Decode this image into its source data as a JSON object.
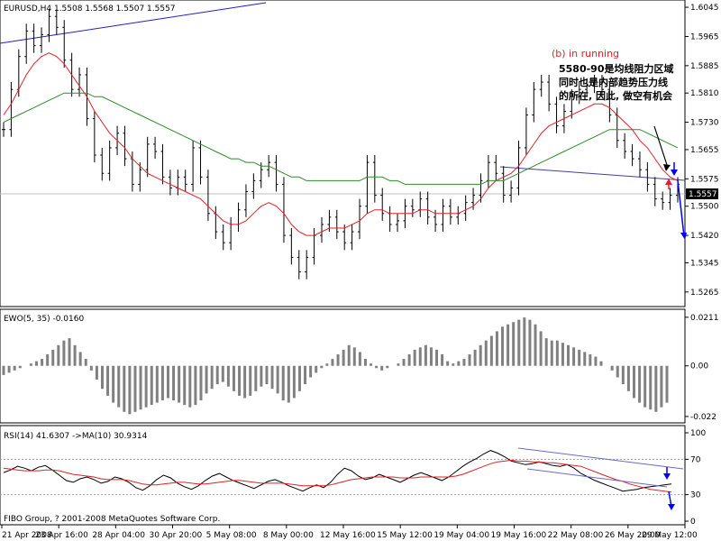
{
  "chart_data": [
    {
      "type": "candlestick",
      "panel": "price",
      "header_text": "EURUSD,H4  1.5508 1.5568 1.5507 1.5557",
      "ylim": [
        1.523,
        1.606
      ],
      "y_ticks": [
        "1.6045",
        "1.5965",
        "1.5885",
        "1.5810",
        "1.5730",
        "1.5655",
        "1.5575",
        "1.5500",
        "1.5420",
        "1.5345",
        "1.5265"
      ],
      "current_price": "1.5557",
      "grid": false,
      "series": [
        {
          "name": "",
          "color": "#000000",
          "values": [
            1.571,
            1.582,
            1.591,
            1.598,
            1.594,
            1.597,
            1.602,
            1.599,
            1.59,
            1.582,
            1.586,
            1.574,
            1.564,
            1.559,
            1.566,
            1.57,
            1.563,
            1.556,
            1.56,
            1.567,
            1.565,
            1.558,
            1.555,
            1.558,
            1.556,
            1.566,
            1.558,
            1.548,
            1.543,
            1.54,
            1.545,
            1.549,
            1.554,
            1.557,
            1.56,
            1.562,
            1.556,
            1.542,
            1.536,
            1.532,
            1.536,
            1.542,
            1.545,
            1.547,
            1.543,
            1.54,
            1.543,
            1.55,
            1.562,
            1.553,
            1.548,
            1.545,
            1.546,
            1.55,
            1.549,
            1.552,
            1.547,
            1.545,
            1.55,
            1.547,
            1.548,
            1.551,
            1.553,
            1.557,
            1.562,
            1.559,
            1.553,
            1.555,
            1.566,
            1.575,
            1.582,
            1.584,
            1.578,
            1.572,
            1.576,
            1.58,
            1.582,
            1.583,
            1.584,
            1.582,
            1.575,
            1.568,
            1.565,
            1.563,
            1.56,
            1.556,
            1.552,
            1.551,
            1.553,
            1.556
          ]
        },
        {
          "name": "",
          "color": "#e0202a",
          "values": [
            1.575,
            1.578,
            1.582,
            1.586,
            1.589,
            1.591,
            1.592,
            1.591,
            1.589,
            1.586,
            1.583,
            1.58,
            1.576,
            1.573,
            1.57,
            1.568,
            1.566,
            1.563,
            1.561,
            1.559,
            1.558,
            1.557,
            1.556,
            1.555,
            1.554,
            1.553,
            1.552,
            1.55,
            1.548,
            1.546,
            1.545,
            1.545,
            1.546,
            1.548,
            1.55,
            1.551,
            1.55,
            1.548,
            1.545,
            1.543,
            1.542,
            1.542,
            1.543,
            1.544,
            1.544,
            1.544,
            1.545,
            1.546,
            1.548,
            1.549,
            1.549,
            1.548,
            1.548,
            1.548,
            1.548,
            1.549,
            1.549,
            1.548,
            1.548,
            1.548,
            1.548,
            1.549,
            1.55,
            1.552,
            1.555,
            1.557,
            1.558,
            1.559,
            1.561,
            1.564,
            1.567,
            1.57,
            1.572,
            1.573,
            1.574,
            1.575,
            1.576,
            1.577,
            1.578,
            1.578,
            1.577,
            1.575,
            1.573,
            1.571,
            1.568,
            1.566,
            1.563,
            1.56,
            1.558,
            1.557
          ]
        },
        {
          "name": "",
          "color": "#2e8b2e",
          "values": [
            1.573,
            1.574,
            1.575,
            1.576,
            1.577,
            1.578,
            1.579,
            1.58,
            1.581,
            1.581,
            1.581,
            1.581,
            1.58,
            1.58,
            1.579,
            1.578,
            1.577,
            1.576,
            1.575,
            1.574,
            1.573,
            1.572,
            1.571,
            1.57,
            1.569,
            1.568,
            1.567,
            1.566,
            1.565,
            1.564,
            1.563,
            1.563,
            1.562,
            1.562,
            1.561,
            1.561,
            1.56,
            1.559,
            1.558,
            1.558,
            1.557,
            1.557,
            1.557,
            1.557,
            1.557,
            1.557,
            1.557,
            1.557,
            1.558,
            1.558,
            1.558,
            1.557,
            1.557,
            1.556,
            1.556,
            1.556,
            1.556,
            1.556,
            1.556,
            1.556,
            1.556,
            1.556,
            1.556,
            1.556,
            1.557,
            1.557,
            1.557,
            1.558,
            1.559,
            1.56,
            1.561,
            1.562,
            1.563,
            1.564,
            1.565,
            1.566,
            1.567,
            1.568,
            1.569,
            1.57,
            1.571,
            1.571,
            1.571,
            1.571,
            1.571,
            1.57,
            1.569,
            1.568,
            1.567,
            1.566
          ]
        }
      ],
      "annotations": [
        {
          "text": "(b) in running",
          "color": "#e0202a"
        },
        {
          "text": "5580-90是均线阻力区域",
          "color": "#000000"
        },
        {
          "text": "同时也是内部趋势压力线",
          "color": "#000000"
        },
        {
          "text": "的所在, 因此, 做空有机会",
          "color": "#000000"
        }
      ]
    },
    {
      "type": "bar",
      "panel": "ewo",
      "header_text": "EWO(5, 35) -0.0160",
      "ylim": [
        -0.024,
        0.023
      ],
      "y_ticks": [
        "0.0211",
        "0.00",
        "-0.022"
      ],
      "series": [
        {
          "name": "",
          "color": "#808080",
          "values": [
            -0.004,
            -0.003,
            -0.002,
            -0.001,
            0.0,
            0.001,
            0.002,
            0.003,
            0.005,
            0.007,
            0.009,
            0.011,
            0.012,
            0.009,
            0.006,
            0.003,
            -0.002,
            -0.006,
            -0.01,
            -0.013,
            -0.016,
            -0.018,
            -0.02,
            -0.021,
            -0.02,
            -0.019,
            -0.018,
            -0.017,
            -0.016,
            -0.015,
            -0.014,
            -0.015,
            -0.016,
            -0.017,
            -0.018,
            -0.017,
            -0.015,
            -0.012,
            -0.01,
            -0.008,
            -0.007,
            -0.009,
            -0.011,
            -0.013,
            -0.014,
            -0.013,
            -0.011,
            -0.009,
            -0.008,
            -0.01,
            -0.012,
            -0.015,
            -0.016,
            -0.014,
            -0.011,
            -0.008,
            -0.005,
            -0.003,
            -0.001,
            0.001,
            0.003,
            0.005,
            0.007,
            0.009,
            0.008,
            0.006,
            0.003,
            0.001,
            -0.001,
            -0.002,
            -0.001,
            0.0,
            0.001,
            0.003,
            0.005,
            0.007,
            0.008,
            0.009,
            0.008,
            0.007,
            0.005,
            0.002,
            0.001,
            0.002,
            0.003,
            0.005,
            0.007,
            0.009,
            0.011,
            0.013,
            0.015,
            0.017,
            0.018,
            0.019,
            0.02,
            0.021,
            0.02,
            0.018,
            0.015,
            0.012,
            0.011,
            0.011,
            0.01,
            0.009,
            0.008,
            0.007,
            0.006,
            0.005,
            0.004,
            0.002,
            0.0,
            -0.002,
            -0.005,
            -0.008,
            -0.011,
            -0.014,
            -0.016,
            -0.018,
            -0.019,
            -0.02,
            -0.018,
            -0.016
          ]
        }
      ]
    },
    {
      "type": "line",
      "panel": "rsi",
      "header_text": "RSI(14) 41.6307  ->MA(10) 30.9314",
      "ylim": [
        0,
        100
      ],
      "y_ticks": [
        "100",
        "70",
        "30",
        "0"
      ],
      "series": [
        {
          "name": "",
          "color": "#000000",
          "values": [
            55,
            58,
            62,
            60,
            57,
            61,
            63,
            58,
            52,
            46,
            44,
            48,
            50,
            47,
            43,
            45,
            50,
            48,
            44,
            38,
            35,
            40,
            47,
            52,
            49,
            43,
            39,
            36,
            40,
            46,
            51,
            54,
            50,
            46,
            43,
            40,
            37,
            41,
            45,
            47,
            44,
            40,
            37,
            34,
            38,
            41,
            38,
            44,
            53,
            60,
            57,
            51,
            47,
            49,
            53,
            50,
            47,
            44,
            48,
            52,
            55,
            52,
            49,
            46,
            50,
            56,
            62,
            67,
            71,
            76,
            80,
            77,
            73,
            68,
            66,
            64,
            65,
            67,
            65,
            63,
            62,
            64,
            60,
            54,
            50,
            46,
            43,
            40,
            37,
            34,
            35,
            36,
            38,
            39,
            40,
            41,
            42
          ]
        },
        {
          "name": "",
          "color": "#e0202a",
          "values": [
            60,
            59,
            58,
            57,
            57,
            57,
            58,
            58,
            57,
            55,
            53,
            52,
            51,
            50,
            48,
            47,
            47,
            47,
            46,
            44,
            42,
            41,
            41,
            42,
            43,
            44,
            44,
            43,
            42,
            42,
            43,
            44,
            45,
            46,
            46,
            45,
            44,
            43,
            43,
            43,
            43,
            42,
            41,
            40,
            40,
            40,
            40,
            41,
            43,
            45,
            47,
            48,
            49,
            50,
            50,
            50,
            50,
            49,
            49,
            49,
            50,
            50,
            50,
            50,
            50,
            51,
            53,
            56,
            59,
            62,
            65,
            67,
            68,
            69,
            68,
            68,
            67,
            67,
            66,
            66,
            65,
            64,
            63,
            62,
            59,
            56,
            53,
            50,
            47,
            45,
            42,
            40,
            38,
            36,
            35,
            34,
            33
          ]
        }
      ],
      "reference_lines": [
        70,
        30
      ]
    }
  ],
  "x_axis": {
    "labels": [
      "21 Apr 2008",
      "23 Apr 16:00",
      "28 Apr 04:00",
      "30 Apr 20:00",
      "5 May 08:00",
      "8 May 00:00",
      "12 May 16:00",
      "15 May 12:00",
      "19 May 04:00",
      "19 May 16:00",
      "22 May 08:00",
      "26 May 20:00",
      "29 May 12:00"
    ]
  },
  "footer": "FIBO Group, ? 2001-2008 MetaQuotes Software Corp.",
  "colors": {
    "accent_red": "#e0202a",
    "trend_blue": "#2020c0",
    "ma_green": "#2e8b2e",
    "grid": "#c0c0c0"
  }
}
